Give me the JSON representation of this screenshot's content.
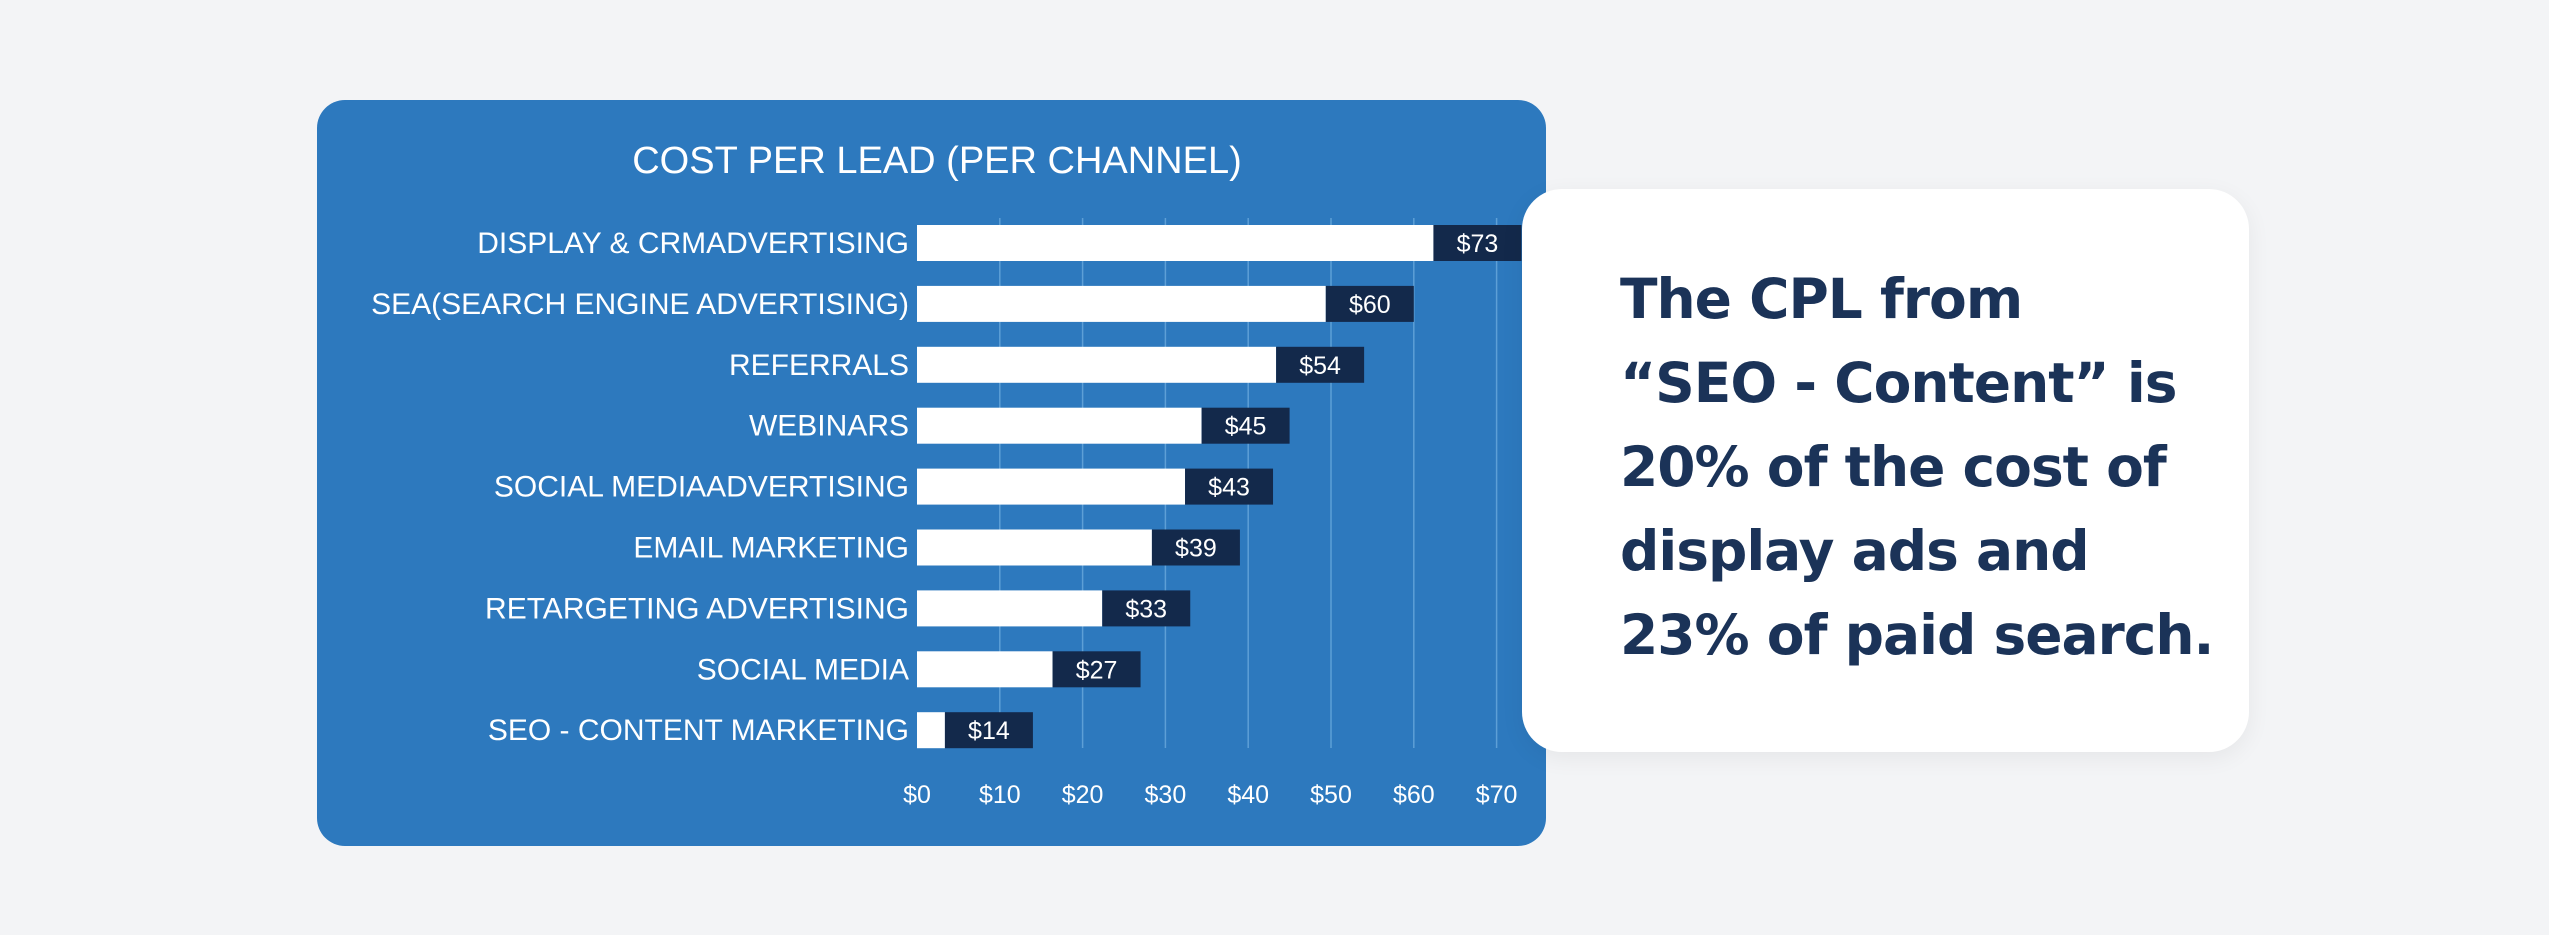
{
  "colors": {
    "page_background": "#f3f4f6",
    "card_background": "#2d79be",
    "bar_fill": "#ffffff",
    "label_box": "#13294b",
    "gridline": "#5d9fd6",
    "callout_text": "#1b3358"
  },
  "chart_data": {
    "type": "bar",
    "orientation": "horizontal",
    "title": "COST PER LEAD (PER CHANNEL)",
    "categories": [
      "DISPLAY & CRMADVERTISING",
      "SEA(SEARCH ENGINE ADVERTISING)",
      "REFERRALS",
      "WEBINARS",
      "SOCIAL MEDIAADVERTISING",
      "EMAIL MARKETING",
      "RETARGETING ADVERTISING",
      "SOCIAL MEDIA",
      "SEO - CONTENT MARKETING"
    ],
    "values": [
      73,
      60,
      54,
      45,
      43,
      39,
      33,
      27,
      14
    ],
    "data_labels": [
      "$73",
      "$60",
      "$54",
      "$45",
      "$43",
      "$39",
      "$33",
      "$27",
      "$14"
    ],
    "xlim": [
      0,
      70
    ],
    "xticks": [
      0,
      10,
      20,
      30,
      40,
      50,
      60,
      70
    ],
    "xtick_labels": [
      "$0",
      "$10",
      "$20",
      "$30",
      "$40",
      "$50",
      "$60",
      "$70"
    ],
    "xlabel": "",
    "ylabel": "",
    "grid": true,
    "legend": false
  },
  "callout": {
    "lines": [
      "The CPL from",
      "“SEO - Content” is",
      "20% of the cost of",
      "display ads and",
      "23% of paid search."
    ]
  }
}
